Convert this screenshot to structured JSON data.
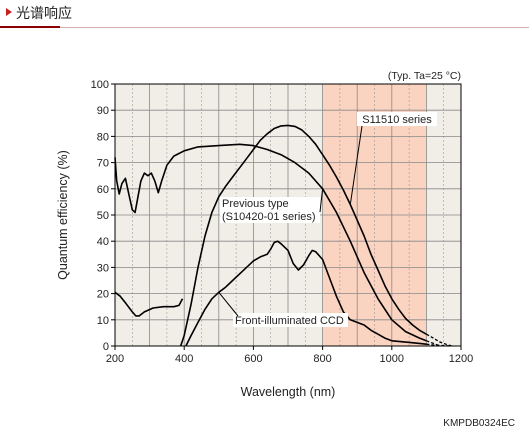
{
  "header": {
    "title": "光谱响应"
  },
  "footer": {
    "code": "KMPDB0324EC"
  },
  "colors": {
    "highlight": "#fbd3c1",
    "plot_bg": "#f1ede7",
    "grid": "#8a8a8a",
    "curve": "#000000",
    "accent": "#c81e1e"
  },
  "chart_data": {
    "type": "line",
    "xlabel": "Wavelength (nm)",
    "ylabel": "Quantum efficiency (%)",
    "note": "(Typ. Ta=25 °C)",
    "xlim": [
      200,
      1200
    ],
    "ylim": [
      0,
      100
    ],
    "x_ticks": [
      200,
      400,
      600,
      800,
      1000,
      1200
    ],
    "y_ticks": [
      0,
      10,
      20,
      30,
      40,
      50,
      60,
      70,
      80,
      90,
      100
    ],
    "highlight_band": [
      800,
      1100
    ],
    "grid": true,
    "dashed_from": 1100,
    "series": [
      {
        "name": "S11510 series",
        "points": [
          [
            390,
            0
          ],
          [
            400,
            4
          ],
          [
            420,
            16
          ],
          [
            440,
            30
          ],
          [
            460,
            42
          ],
          [
            480,
            51
          ],
          [
            500,
            57
          ],
          [
            520,
            61
          ],
          [
            540,
            64.5
          ],
          [
            560,
            68
          ],
          [
            580,
            71.5
          ],
          [
            600,
            75
          ],
          [
            620,
            78.5
          ],
          [
            640,
            81
          ],
          [
            660,
            83
          ],
          [
            680,
            84
          ],
          [
            700,
            84.2
          ],
          [
            720,
            83.8
          ],
          [
            740,
            82.5
          ],
          [
            760,
            80
          ],
          [
            780,
            77
          ],
          [
            800,
            73
          ],
          [
            820,
            69
          ],
          [
            840,
            64.5
          ],
          [
            860,
            59.5
          ],
          [
            880,
            54
          ],
          [
            900,
            48
          ],
          [
            920,
            42
          ],
          [
            940,
            35
          ],
          [
            960,
            29
          ],
          [
            980,
            23
          ],
          [
            1000,
            18
          ],
          [
            1020,
            14
          ],
          [
            1040,
            10.5
          ],
          [
            1060,
            8
          ],
          [
            1080,
            6
          ],
          [
            1100,
            4.5
          ],
          [
            1120,
            3
          ],
          [
            1140,
            1.5
          ],
          [
            1160,
            0.5
          ],
          [
            1175,
            0
          ]
        ]
      },
      {
        "name": "Previous type (S10420-01 series)",
        "points": [
          [
            200,
            72
          ],
          [
            205,
            63
          ],
          [
            212,
            58
          ],
          [
            220,
            62
          ],
          [
            230,
            64
          ],
          [
            240,
            58
          ],
          [
            250,
            52
          ],
          [
            258,
            51
          ],
          [
            265,
            56
          ],
          [
            275,
            63
          ],
          [
            285,
            66
          ],
          [
            295,
            65
          ],
          [
            305,
            66
          ],
          [
            315,
            63
          ],
          [
            325,
            58.5
          ],
          [
            335,
            63
          ],
          [
            350,
            69
          ],
          [
            370,
            72.5
          ],
          [
            400,
            74.5
          ],
          [
            440,
            76
          ],
          [
            500,
            76.5
          ],
          [
            560,
            77
          ],
          [
            600,
            76.5
          ],
          [
            640,
            75
          ],
          [
            680,
            73
          ],
          [
            720,
            70
          ],
          [
            760,
            66
          ],
          [
            800,
            60
          ],
          [
            840,
            51
          ],
          [
            880,
            40
          ],
          [
            920,
            28
          ],
          [
            960,
            18
          ],
          [
            1000,
            10
          ],
          [
            1040,
            5.5
          ],
          [
            1080,
            3
          ],
          [
            1100,
            2
          ],
          [
            1120,
            1
          ],
          [
            1140,
            0
          ]
        ]
      },
      {
        "name": "Front-illuminated CCD",
        "points": [
          [
            405,
            0
          ],
          [
            420,
            4
          ],
          [
            440,
            9
          ],
          [
            460,
            14
          ],
          [
            480,
            18
          ],
          [
            500,
            20.5
          ],
          [
            520,
            22.5
          ],
          [
            540,
            25
          ],
          [
            560,
            27.5
          ],
          [
            580,
            30
          ],
          [
            600,
            32.5
          ],
          [
            620,
            34
          ],
          [
            640,
            35
          ],
          [
            650,
            37
          ],
          [
            660,
            39.5
          ],
          [
            670,
            40
          ],
          [
            680,
            39
          ],
          [
            700,
            36.5
          ],
          [
            715,
            31.5
          ],
          [
            730,
            29
          ],
          [
            745,
            31
          ],
          [
            760,
            34.5
          ],
          [
            770,
            36.5
          ],
          [
            780,
            36
          ],
          [
            800,
            33
          ],
          [
            820,
            26
          ],
          [
            840,
            19
          ],
          [
            860,
            13
          ],
          [
            880,
            10
          ],
          [
            900,
            9
          ],
          [
            920,
            8
          ],
          [
            940,
            6
          ],
          [
            960,
            4.5
          ],
          [
            980,
            3
          ],
          [
            1000,
            2
          ],
          [
            1040,
            1.5
          ],
          [
            1080,
            1
          ],
          [
            1100,
            0.7
          ],
          [
            1120,
            0.4
          ],
          [
            1150,
            0.1
          ],
          [
            1170,
            0
          ]
        ]
      },
      {
        "name": "",
        "points": [
          [
            200,
            20.5
          ],
          [
            215,
            19
          ],
          [
            230,
            16.5
          ],
          [
            250,
            13
          ],
          [
            260,
            11.5
          ],
          [
            270,
            11.5
          ],
          [
            285,
            13
          ],
          [
            310,
            14.5
          ],
          [
            340,
            15
          ],
          [
            370,
            15
          ],
          [
            385,
            15.5
          ],
          [
            395,
            18
          ]
        ]
      }
    ],
    "labels": {
      "s11510": "S11510 series",
      "previous_line1": "Previous type",
      "previous_line2": "(S10420-01 series)",
      "ccd": "Front-illuminated CCD"
    }
  }
}
